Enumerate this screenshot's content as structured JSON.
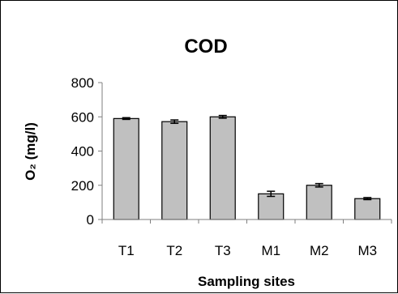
{
  "chart_data": {
    "type": "bar",
    "title": "COD",
    "xlabel": "Sampling sites",
    "ylabel": "O₂ (mg/l)",
    "ylim": [
      0,
      800
    ],
    "yticks": [
      "0",
      "200",
      "400",
      "600",
      "800"
    ],
    "categories": [
      "T1",
      "T2",
      "T3",
      "M1",
      "M2",
      "M3"
    ],
    "values": [
      590,
      572,
      600,
      150,
      200,
      122
    ],
    "errors": [
      5,
      10,
      8,
      15,
      10,
      6
    ],
    "grid": false,
    "legend": "none",
    "bar_color": "#c0c0c0",
    "bar_edge_color": "#000000"
  }
}
